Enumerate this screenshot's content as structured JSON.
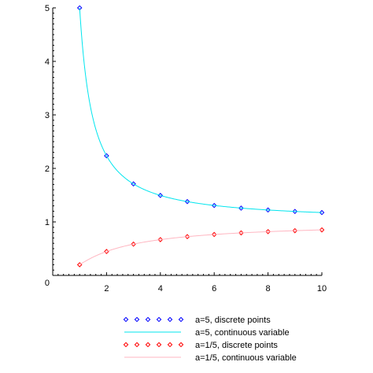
{
  "chart_data": {
    "type": "line",
    "title": "",
    "xlabel": "",
    "ylabel": "",
    "xlim": [
      0,
      10
    ],
    "ylim": [
      0,
      5
    ],
    "origin_label": "0",
    "x_ticks": [
      2,
      4,
      6,
      8,
      10
    ],
    "y_ticks": [
      1,
      2,
      3,
      4,
      5
    ],
    "grid": false,
    "legend_position": "bottom",
    "series": [
      {
        "name": "a=5, discrete points",
        "kind": "points",
        "marker": "diamond",
        "color": "#0000ff",
        "x": [
          1,
          2,
          3,
          4,
          5,
          6,
          7,
          8,
          9,
          10
        ],
        "y": [
          5,
          2.236,
          1.71,
          1.495,
          1.38,
          1.307,
          1.258,
          1.223,
          1.196,
          1.175
        ]
      },
      {
        "name": "a=5, continuous variable",
        "kind": "line",
        "color": "#00e5ee",
        "formula": "a^(1/x)",
        "a": 5,
        "x_range": [
          1,
          10
        ]
      },
      {
        "name": "a=1/5, discrete points",
        "kind": "points",
        "marker": "diamond",
        "color": "#ff0000",
        "x": [
          1,
          2,
          3,
          4,
          5,
          6,
          7,
          8,
          9,
          10
        ],
        "y": [
          0.2,
          0.447,
          0.585,
          0.669,
          0.725,
          0.765,
          0.795,
          0.818,
          0.836,
          0.851
        ]
      },
      {
        "name": "a=1/5, continuous variable",
        "kind": "line",
        "color": "#ffb6c1",
        "formula": "a^(1/x)",
        "a": 0.2,
        "x_range": [
          1,
          10
        ]
      }
    ]
  }
}
